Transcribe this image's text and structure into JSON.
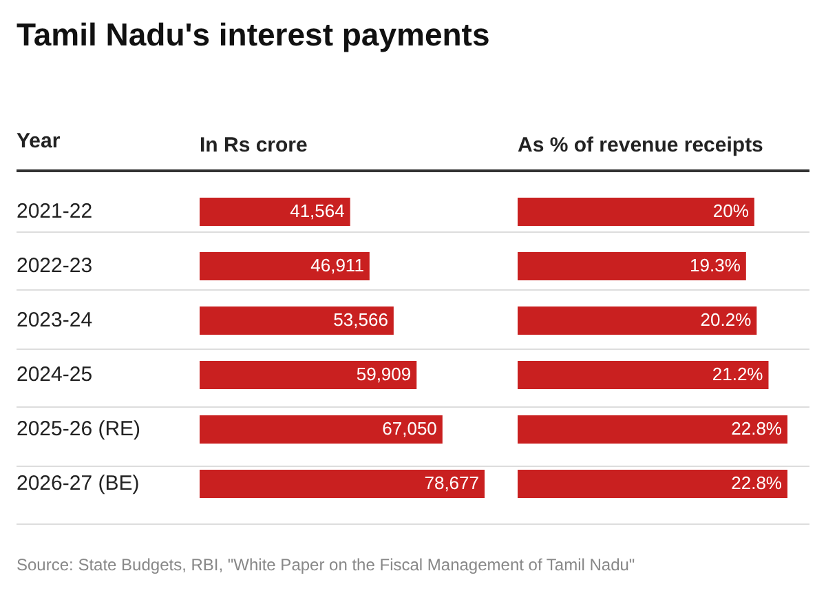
{
  "chart_data": [
    {
      "type": "bar",
      "orientation": "horizontal",
      "title": "Tamil Nadu's interest payments",
      "ylabel": "Year",
      "xlabel": "In Rs crore",
      "tick_labels": "y",
      "categories": [
        "2021-22",
        "2022-23",
        "2023-24",
        "2024-25",
        "2025-26 (RE)",
        "2026-27 (BE)"
      ],
      "values": [
        41564,
        46911,
        53566,
        59909,
        67050,
        78677
      ],
      "value_labels": [
        "41,564",
        "46,911",
        "53,566",
        "59,909",
        "67,050",
        "78,677"
      ],
      "color": "#c92020",
      "annotations": [
        "Source: State Budgets, RBI, \"White Paper on the Fiscal Management of Tamil Nadu\""
      ]
    },
    {
      "type": "bar",
      "orientation": "horizontal",
      "xlabel": "As % of revenue receipts",
      "tick_labels": false,
      "categories": [
        null,
        null,
        null,
        null,
        null,
        null
      ],
      "values": [
        20,
        19.3,
        20.2,
        21.2,
        22.8,
        22.8
      ],
      "value_labels": [
        "20%",
        "19.3%",
        "20.2%",
        "21.2%",
        "22.8%",
        "22.8%"
      ],
      "color": "#c92020"
    }
  ]
}
